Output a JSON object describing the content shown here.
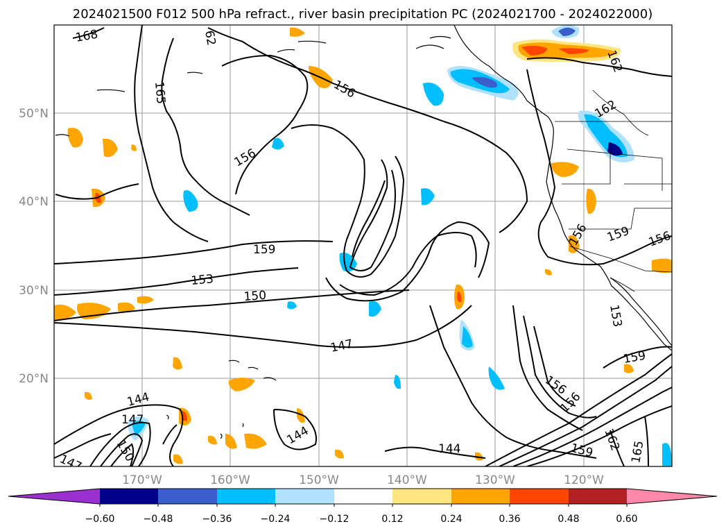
{
  "title": "2024021500 F012 500 hPa refract., river basin precipitation PC (2024021700 - 2024022000)",
  "lat_labels": [
    "50°N",
    "40°N",
    "30°N",
    "20°N"
  ],
  "lon_labels": [
    "170°W",
    "160°W",
    "150°W",
    "140°W",
    "130°W",
    "120°W"
  ],
  "colorbar": {
    "tick_labels": [
      "−0.60",
      "−0.48",
      "−0.36",
      "−0.24",
      "−0.12",
      "0.12",
      "0.24",
      "0.36",
      "0.48",
      "0.60"
    ],
    "colors": [
      "#9b30d0",
      "#00008b",
      "#3a5fcd",
      "#00bfff",
      "#b0e2ff",
      "#ffffff",
      "#ffe680",
      "#ffa500",
      "#ff4500",
      "#b22222",
      "#ff88aa"
    ]
  },
  "map_data": {
    "region": "North Pacific / western North America",
    "extent": {
      "lon_min": -180,
      "lon_max": -110,
      "lat_min": 10,
      "lat_max": 60
    },
    "contour_labels": [
      "168",
      "62",
      "165",
      "156",
      "156",
      "159",
      "153",
      "150",
      "147",
      "144",
      "147",
      "147",
      "156",
      "162",
      "162",
      "159",
      "156",
      "153",
      "159",
      "156",
      "156",
      "159",
      "162",
      "165",
      "144",
      "144",
      "150"
    ]
  }
}
